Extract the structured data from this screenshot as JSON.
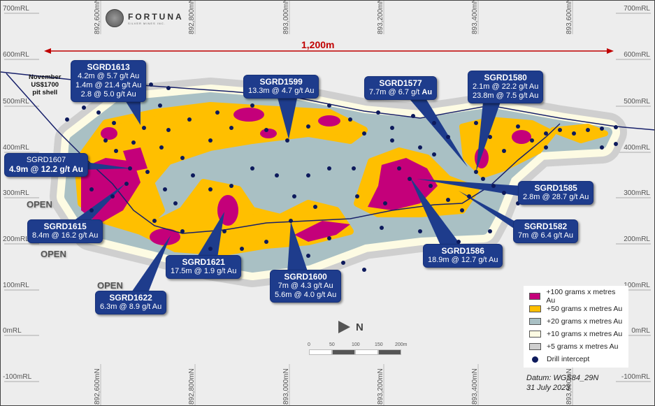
{
  "logo": {
    "name": "FORTUNA",
    "subtitle": "SILVER MINES INC."
  },
  "distance_label": "1,200m",
  "pit_shell_label": [
    "November",
    "US$1700",
    "pit shell"
  ],
  "rl_labels": [
    "700mRL",
    "600mRL",
    "500mRL",
    "400mRL",
    "300mRL",
    "200mRL",
    "100mRL",
    "0mRL",
    "-100mRL"
  ],
  "northings": [
    "892,600mN",
    "892,800mN",
    "893,000mN",
    "893,200mN",
    "893,400mN",
    "893,600mN"
  ],
  "open_labels": [
    "OPEN",
    "OPEN",
    "OPEN"
  ],
  "callouts": {
    "sgrd1613": {
      "hole": "SGRD1613",
      "lines": [
        "4.2m @ 5.7 g/t Au",
        "1.4m @ 21.4 g/t Au",
        "2.8 @ 5.0 g/t Au"
      ]
    },
    "sgrd1599": {
      "hole": "SGRD1599",
      "lines": [
        "13.3m @ 4.7 g/t Au"
      ]
    },
    "sgrd1577": {
      "hole": "SGRD1577",
      "line_a": "7.7m @ 6.7 g/t ",
      "line_b": "Au"
    },
    "sgrd1580": {
      "hole": "SGRD1580",
      "lines": [
        "2.1m @ 22.2 g/t Au",
        "23.8m @ 7.5 g/t Au"
      ]
    },
    "sgrd1607": {
      "hole": "SGRD1607",
      "lines": [
        "4.9m @ 12.2 g/t Au"
      ]
    },
    "sgrd1615": {
      "hole": "SGRD1615",
      "lines": [
        "8.4m @ 16.2 g/t Au"
      ]
    },
    "sgrd1585": {
      "hole": "SGRD1585",
      "lines": [
        "2.8m @ 28.7  g/t Au"
      ]
    },
    "sgrd1582": {
      "hole": "SGRD1582",
      "lines": [
        "7m @ 6.4 g/t Au"
      ]
    },
    "sgrd1586": {
      "hole": "SGRD1586",
      "lines": [
        "18.9m @ 12.7 g/t Au"
      ]
    },
    "sgrd1621": {
      "hole": "SGRD1621",
      "lines": [
        "17.5m @ 1.9 g/t Au"
      ]
    },
    "sgrd1600": {
      "hole": "SGRD1600",
      "lines": [
        "7m @ 4.3 g/t Au",
        "5.6m @ 4.0 g/t Au"
      ]
    },
    "sgrd1622": {
      "hole": "SGRD1622",
      "lines": [
        "6.3m @ 8.9 g/t Au"
      ]
    }
  },
  "legend": [
    {
      "label": "+100 grams x metres Au",
      "color": "#c4007a"
    },
    {
      "label": "+50 grams x metres Au",
      "color": "#ffbf00"
    },
    {
      "label": "+20 grams x metres Au",
      "color": "#a9c0c4"
    },
    {
      "label": "+10 grams x metres Au",
      "color": "#fdfbe3"
    },
    {
      "label": "+5 grams x metres Au",
      "color": "#cfcfcf"
    },
    {
      "label": "Drill intercept",
      "color": "#0d1a5c"
    }
  ],
  "north_label": "N",
  "scale_labels": [
    "0",
    "50",
    "100",
    "150",
    "200m"
  ],
  "datum": [
    "Datum: WGS84_29N",
    "31 July 2023"
  ]
}
